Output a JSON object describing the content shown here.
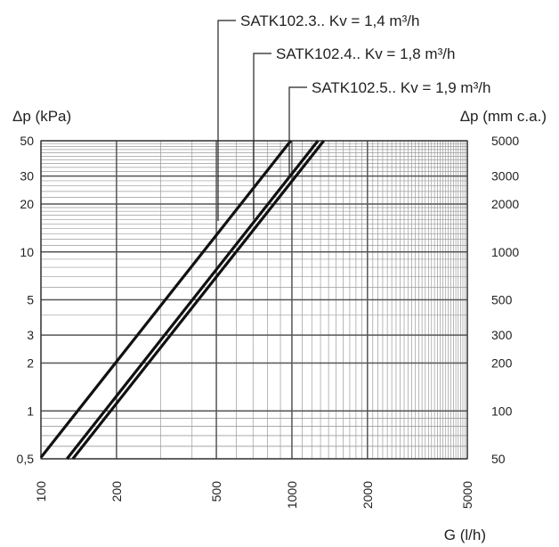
{
  "chart_data": {
    "type": "line",
    "x_scale": "log",
    "y_scale": "log",
    "xlim": [
      100,
      5000
    ],
    "ylim": [
      0.5,
      50
    ],
    "xlabel": "G (l/h)",
    "ylabel_left": "Δp (kPa)",
    "ylabel_right": "Δp (mm c.a.)",
    "x_ticks": [
      100,
      200,
      500,
      1000,
      2000,
      5000
    ],
    "x_tick_labels": [
      "100",
      "200",
      "500",
      "1000",
      "2000",
      "5000"
    ],
    "y_ticks_left": [
      0.5,
      1,
      2,
      3,
      5,
      10,
      20,
      30,
      50
    ],
    "y_tick_labels_left": [
      "0,5",
      "1",
      "2",
      "3",
      "5",
      "10",
      "20",
      "30",
      "50"
    ],
    "y_tick_labels_right": [
      "50",
      "100",
      "200",
      "300",
      "500",
      "1000",
      "2000",
      "3000",
      "5000"
    ],
    "grid": true,
    "series": [
      {
        "name": "SATK102.3.. Kv = 1,4 m³/h",
        "kv": 1.4,
        "x": [
          100,
          990
        ],
        "y": [
          0.51,
          50
        ]
      },
      {
        "name": "SATK102.4.. Kv = 1,8 m³/h",
        "kv": 1.8,
        "x": [
          127,
          1270
        ],
        "y": [
          0.5,
          50
        ]
      },
      {
        "name": "SATK102.5.. Kv = 1,9 m³/h",
        "kv": 1.9,
        "x": [
          134,
          1340
        ],
        "y": [
          0.5,
          50
        ]
      }
    ]
  }
}
